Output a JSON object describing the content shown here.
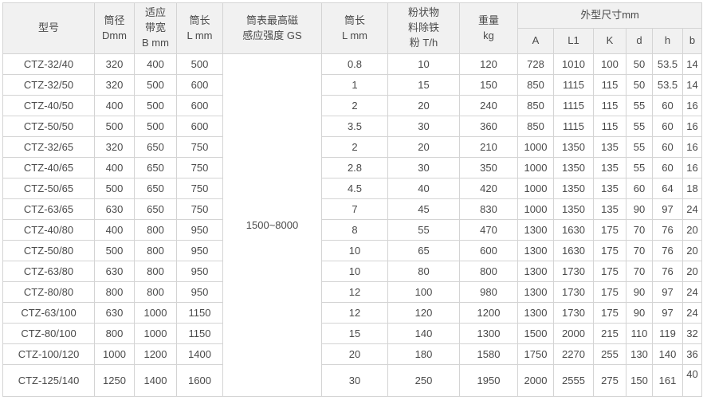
{
  "table": {
    "headers": {
      "model": "型号",
      "diameter": "筒径\nDmm",
      "bandwidth": "适应\n带宽\nB mm",
      "length": "筒长\nL mm",
      "magnetic": "筒表最高磁\n感应强度 GS",
      "length2": "筒长\nL mm",
      "powder": "粉状物\n料除铁\n粉 T/h",
      "weight": "重量\nkg",
      "dimensions": "外型尺寸mm",
      "dim_subcols": [
        "A",
        "L1",
        "K",
        "d",
        "h",
        "b"
      ]
    },
    "magnetic_value": "1500~8000",
    "rows": [
      {
        "model": "CTZ-32/40",
        "left": [
          "320",
          "400",
          "500"
        ],
        "right": [
          "0.8",
          "10",
          "120",
          "728",
          "1010",
          "100",
          "50",
          "53.5",
          "14"
        ]
      },
      {
        "model": "CTZ-32/50",
        "left": [
          "320",
          "500",
          "600"
        ],
        "right": [
          "1",
          "15",
          "150",
          "850",
          "1115",
          "115",
          "50",
          "53.5",
          "14"
        ]
      },
      {
        "model": "CTZ-40/50",
        "left": [
          "400",
          "500",
          "600"
        ],
        "right": [
          "2",
          "20",
          "240",
          "850",
          "1115",
          "115",
          "55",
          "60",
          "16"
        ]
      },
      {
        "model": "CTZ-50/50",
        "left": [
          "500",
          "500",
          "600"
        ],
        "right": [
          "3.5",
          "30",
          "360",
          "850",
          "1115",
          "115",
          "55",
          "60",
          "16"
        ]
      },
      {
        "model": "CTZ-32/65",
        "left": [
          "320",
          "650",
          "750"
        ],
        "right": [
          "2",
          "20",
          "210",
          "1000",
          "1350",
          "135",
          "55",
          "60",
          "16"
        ]
      },
      {
        "model": "CTZ-40/65",
        "left": [
          "400",
          "650",
          "750"
        ],
        "right": [
          "2.8",
          "30",
          "350",
          "1000",
          "1350",
          "135",
          "55",
          "60",
          "16"
        ]
      },
      {
        "model": "CTZ-50/65",
        "left": [
          "500",
          "650",
          "750"
        ],
        "right": [
          "4.5",
          "40",
          "420",
          "1000",
          "1350",
          "135",
          "60",
          "64",
          "18"
        ]
      },
      {
        "model": "CTZ-63/65",
        "left": [
          "630",
          "650",
          "750"
        ],
        "right": [
          "7",
          "45",
          "830",
          "1000",
          "1350",
          "135",
          "90",
          "97",
          "24"
        ]
      },
      {
        "model": "CTZ-40/80",
        "left": [
          "400",
          "800",
          "950"
        ],
        "right": [
          "8",
          "55",
          "470",
          "1300",
          "1630",
          "175",
          "70",
          "76",
          "20"
        ]
      },
      {
        "model": "CTZ-50/80",
        "left": [
          "500",
          "800",
          "950"
        ],
        "right": [
          "10",
          "65",
          "600",
          "1300",
          "1630",
          "175",
          "70",
          "76",
          "20"
        ]
      },
      {
        "model": "CTZ-63/80",
        "left": [
          "630",
          "800",
          "950"
        ],
        "right": [
          "10",
          "80",
          "800",
          "1300",
          "1730",
          "175",
          "70",
          "76",
          "20"
        ]
      },
      {
        "model": "CTZ-80/80",
        "left": [
          "800",
          "800",
          "950"
        ],
        "right": [
          "12",
          "100",
          "980",
          "1300",
          "1730",
          "175",
          "90",
          "97",
          "24"
        ]
      },
      {
        "model": "CTZ-63/100",
        "left": [
          "630",
          "1000",
          "1150"
        ],
        "right": [
          "12",
          "120",
          "1200",
          "1300",
          "1730",
          "175",
          "90",
          "97",
          "24"
        ]
      },
      {
        "model": "CTZ-80/100",
        "left": [
          "800",
          "1000",
          "1150"
        ],
        "right": [
          "15",
          "140",
          "1300",
          "1500",
          "2000",
          "215",
          "110",
          "119",
          "32"
        ]
      },
      {
        "model": "CTZ-100/120",
        "left": [
          "1000",
          "1200",
          "1400"
        ],
        "right": [
          "20",
          "180",
          "1580",
          "1750",
          "2270",
          "255",
          "130",
          "140",
          "36"
        ]
      },
      {
        "model": "CTZ-125/140",
        "left": [
          "1250",
          "1400",
          "1600"
        ],
        "right": [
          "30",
          "250",
          "1950",
          "2000",
          "2555",
          "275",
          "150",
          "161",
          "40"
        ]
      }
    ]
  },
  "colors": {
    "header_bg": "#f1f1f1",
    "border": "#d4d4d4",
    "text": "#4a4a4a"
  }
}
